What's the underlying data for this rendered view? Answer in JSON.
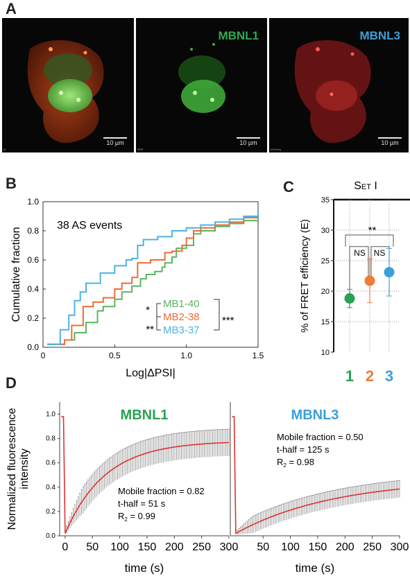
{
  "panel_a": {
    "letter": "A",
    "images": [
      {
        "label": "",
        "label_color": "",
        "scale": "10 µm",
        "corner": "dl"
      },
      {
        "label": "MBNL1",
        "label_color": "#2eaa4e",
        "scale": "10 µm",
        "corner": "GFP"
      },
      {
        "label": "MBNL3",
        "label_color": "#3aa0d8",
        "scale": "10 µm",
        "corner": "mCherry"
      }
    ]
  },
  "panel_b": {
    "letter": "B"
  },
  "panel_c": {
    "letter": "C"
  },
  "panel_d": {
    "letter": "D"
  },
  "chart_data": [
    {
      "type": "line",
      "panel": "B",
      "annotation": "38 AS events",
      "xlabel": "Log|ΔPSI|",
      "ylabel": "Cumulative fraction",
      "xlim": [
        0,
        1.5
      ],
      "ylim": [
        0,
        1.0
      ],
      "xticks": [
        "0",
        "0.5",
        "1.0",
        "1.5"
      ],
      "yticks": [
        "0.0",
        "0.2",
        "0.4",
        "0.6",
        "0.8",
        "1.0"
      ],
      "series": [
        {
          "name": "MB1-40",
          "color": "#5bb461",
          "x": [
            0.03,
            0.15,
            0.22,
            0.3,
            0.38,
            0.42,
            0.5,
            0.55,
            0.62,
            0.68,
            0.72,
            0.78,
            0.83,
            0.85,
            0.9,
            0.93,
            1.0,
            1.05,
            1.1,
            1.2,
            1.3,
            1.4,
            1.5
          ],
          "y": [
            0.02,
            0.05,
            0.1,
            0.17,
            0.25,
            0.28,
            0.33,
            0.38,
            0.42,
            0.47,
            0.5,
            0.52,
            0.55,
            0.58,
            0.62,
            0.68,
            0.7,
            0.78,
            0.8,
            0.83,
            0.85,
            0.87,
            0.89
          ]
        },
        {
          "name": "MB2-38",
          "color": "#ef6a35",
          "x": [
            0.03,
            0.15,
            0.2,
            0.28,
            0.35,
            0.42,
            0.5,
            0.55,
            0.62,
            0.66,
            0.75,
            0.85,
            0.9,
            0.97,
            1.0,
            1.05,
            1.1,
            1.2,
            1.3,
            1.4,
            1.5
          ],
          "y": [
            0.02,
            0.05,
            0.15,
            0.28,
            0.31,
            0.34,
            0.4,
            0.44,
            0.48,
            0.58,
            0.6,
            0.65,
            0.66,
            0.7,
            0.75,
            0.8,
            0.82,
            0.84,
            0.86,
            0.89,
            0.91
          ]
        },
        {
          "name": "MB3-37",
          "color": "#4bb3e4",
          "x": [
            0.03,
            0.12,
            0.18,
            0.22,
            0.26,
            0.3,
            0.4,
            0.5,
            0.58,
            0.62,
            0.66,
            0.7,
            0.8,
            0.9,
            1.0,
            1.1,
            1.2,
            1.3,
            1.4,
            1.5
          ],
          "y": [
            0.02,
            0.12,
            0.22,
            0.32,
            0.38,
            0.44,
            0.51,
            0.56,
            0.6,
            0.61,
            0.7,
            0.74,
            0.76,
            0.8,
            0.82,
            0.84,
            0.86,
            0.88,
            0.9,
            0.94
          ]
        }
      ],
      "significance": {
        "MB1_vs_MB2": "*",
        "MB2_vs_MB3": "**",
        "MB1_vs_MB3": "***"
      }
    },
    {
      "type": "scatter",
      "panel": "C",
      "title": "Set I",
      "ylabel": "% of FRET efficiency (E)",
      "ylim": [
        10,
        35
      ],
      "yticks": [
        "10",
        "15",
        "20",
        "25",
        "30",
        "35"
      ],
      "categories": [
        "1",
        "2",
        "3"
      ],
      "category_colors": [
        "#2aa052",
        "#ef7c35",
        "#3aa0d8"
      ],
      "values": [
        18.8,
        21.7,
        23.1
      ],
      "error": [
        1.5,
        3.6,
        3.9
      ],
      "grid": true,
      "significance": [
        {
          "pair": [
            "1",
            "2"
          ],
          "label": "NS"
        },
        {
          "pair": [
            "2",
            "3"
          ],
          "label": "NS"
        },
        {
          "pair": [
            "1",
            "3"
          ],
          "label": "**"
        }
      ]
    },
    {
      "type": "line",
      "panel": "D",
      "title": "MBNL1",
      "title_color": "#2aa052",
      "xlabel": "time (s)",
      "ylabel": "Normalized fluorescence intensity",
      "xlim": [
        -10,
        300
      ],
      "ylim": [
        0,
        1.1
      ],
      "xticks": [
        "0",
        "50",
        "100",
        "150",
        "200",
        "250",
        "300"
      ],
      "yticks": [
        "0.0",
        "0.2",
        "0.4",
        "0.6",
        "0.8",
        "1.0"
      ],
      "mobile_fraction": "Mobile fraction = 0.82",
      "t_half": "t-half = 51 s",
      "r2": "R",
      "r2_sub": "2",
      "r2_value": "= 0.99",
      "series": [
        {
          "color": "#e03030",
          "plateau": 0.78,
          "t_half": 51,
          "pre": 0.98,
          "post_bleach": 0.02,
          "err": 0.11
        }
      ]
    },
    {
      "type": "line",
      "panel": "D",
      "title": "MBNL3",
      "title_color": "#3aa0d8",
      "xlabel": "time (s)",
      "xlim": [
        -10,
        300
      ],
      "ylim": [
        0,
        1.1
      ],
      "xticks": [
        "50",
        "100",
        "150",
        "200",
        "250",
        "300"
      ],
      "mobile_fraction": "Mobile fraction = 0.50",
      "t_half": "t-half = 125 s",
      "r2": "R",
      "r2_sub": "2",
      "r2_value": "= 0.98",
      "series": [
        {
          "color": "#e03030",
          "plateau": 0.47,
          "t_half": 125,
          "pre": 0.98,
          "post_bleach": 0.02,
          "err": 0.07
        }
      ]
    }
  ]
}
